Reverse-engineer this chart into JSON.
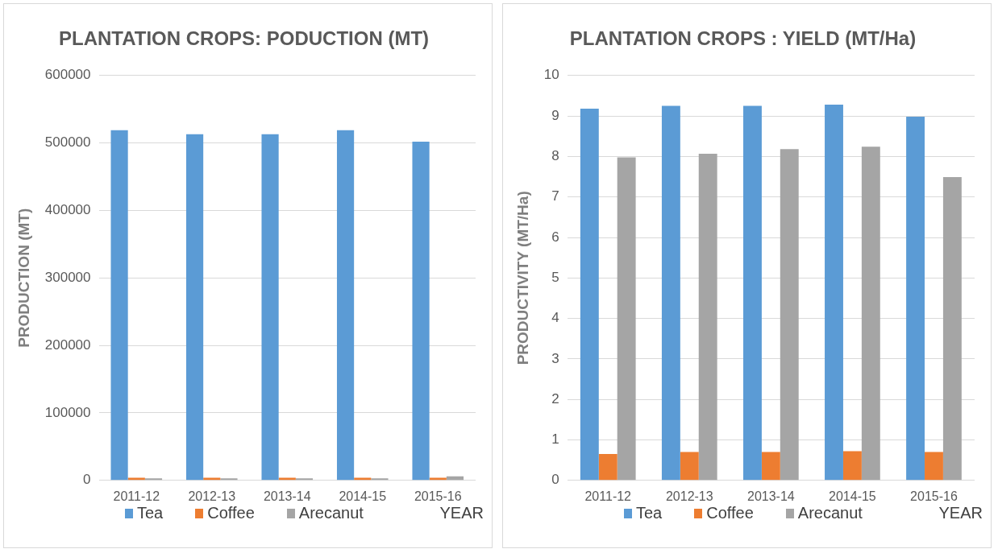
{
  "chart_data": [
    {
      "type": "bar",
      "title": "PLANTATION CROPS: PODUCTION (MT)",
      "xlabel": "YEAR",
      "ylabel": "PRODUCTION (MT)",
      "categories": [
        "2011-12",
        "2012-13",
        "2013-14",
        "2014-15",
        "2015-16"
      ],
      "series": [
        {
          "name": "Tea",
          "color": "#5b9bd5",
          "values": [
            519000,
            513000,
            513000,
            519000,
            502000
          ]
        },
        {
          "name": "Coffee",
          "color": "#ed7d31",
          "values": [
            4000,
            4000,
            4000,
            4000,
            4000
          ]
        },
        {
          "name": "Arecanut",
          "color": "#a5a5a5",
          "values": [
            3000,
            3000,
            3000,
            3000,
            6000
          ]
        }
      ],
      "ylim": [
        0,
        600000
      ],
      "yticks": [
        0,
        100000,
        200000,
        300000,
        400000,
        500000,
        600000
      ],
      "grid": "y",
      "legend": "bottom"
    },
    {
      "type": "bar",
      "title": "PLANTATION CROPS : YIELD (MT/Ha)",
      "xlabel": "YEAR",
      "ylabel": "PRODUCTIVITY (MT/Ha)",
      "categories": [
        "2011-12",
        "2012-13",
        "2013-14",
        "2014-15",
        "2015-16"
      ],
      "series": [
        {
          "name": "Tea",
          "color": "#5b9bd5",
          "values": [
            9.18,
            9.25,
            9.25,
            9.28,
            8.98
          ]
        },
        {
          "name": "Coffee",
          "color": "#ed7d31",
          "values": [
            0.65,
            0.7,
            0.7,
            0.72,
            0.7
          ]
        },
        {
          "name": "Arecanut",
          "color": "#a5a5a5",
          "values": [
            7.98,
            8.07,
            8.18,
            8.24,
            7.49
          ]
        }
      ],
      "ylim": [
        0,
        10
      ],
      "yticks": [
        0,
        1,
        2,
        3,
        4,
        5,
        6,
        7,
        8,
        9,
        10
      ],
      "grid": "y",
      "legend": "bottom"
    }
  ]
}
